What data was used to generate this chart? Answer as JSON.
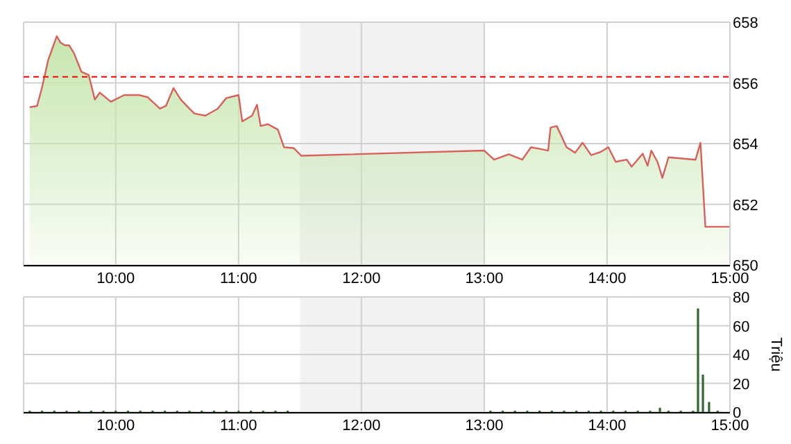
{
  "chart_data": [
    {
      "type": "area",
      "xlim": [
        9.25,
        15
      ],
      "xticks": [
        {
          "value": 10,
          "label": "10:00"
        },
        {
          "value": 11,
          "label": "11:00"
        },
        {
          "value": 12,
          "label": "12:00"
        },
        {
          "value": 13,
          "label": "13:00"
        },
        {
          "value": 14,
          "label": "14:00"
        },
        {
          "value": 15,
          "label": "15:00"
        }
      ],
      "ylim": [
        650,
        658
      ],
      "yticks": [
        650,
        652,
        654,
        656,
        658
      ],
      "grid": true,
      "ref_lines": [
        {
          "axis": "y",
          "value": 656.2,
          "color": "#ff0000",
          "line_style": "dashed"
        }
      ],
      "bands": [
        {
          "axis": "x",
          "from": 11.5,
          "to": 13,
          "color": "#f2f2f2"
        }
      ],
      "series": [
        {
          "color": "#c6e6ae",
          "x": [
            9.3,
            9.36,
            9.4,
            9.45,
            9.49,
            9.52,
            9.55,
            9.585,
            9.62,
            9.66,
            9.72,
            9.78,
            9.83,
            9.87,
            9.96,
            10.07,
            10.19,
            10.26,
            10.36,
            10.41,
            10.47,
            10.53,
            10.6,
            10.64,
            10.73,
            10.83,
            10.9,
            11.0,
            11.03,
            11.11,
            11.15,
            11.18,
            11.24,
            11.32,
            11.37,
            11.45,
            11.51,
            13.0,
            13.08,
            13.2,
            13.31,
            13.38,
            13.46,
            13.52,
            13.54,
            13.59,
            13.67,
            13.74,
            13.8,
            13.87,
            13.95,
            14.01,
            14.07,
            14.16,
            14.2,
            14.29,
            14.33,
            14.36,
            14.41,
            14.45,
            14.5,
            14.72,
            14.76,
            14.8,
            15.0
          ],
          "values": [
            655.2,
            655.24,
            655.85,
            656.75,
            657.2,
            657.54,
            657.33,
            657.24,
            657.24,
            656.98,
            656.37,
            656.26,
            655.45,
            655.68,
            655.38,
            655.6,
            655.6,
            655.53,
            655.15,
            655.25,
            655.83,
            655.45,
            655.15,
            654.99,
            654.92,
            655.15,
            655.5,
            655.6,
            654.73,
            654.92,
            655.28,
            654.58,
            654.64,
            654.46,
            653.88,
            653.85,
            653.6,
            653.77,
            653.47,
            653.65,
            653.47,
            653.88,
            653.82,
            653.77,
            654.53,
            654.58,
            653.88,
            653.7,
            654.03,
            653.62,
            653.73,
            653.88,
            653.4,
            653.47,
            653.24,
            653.67,
            653.27,
            653.77,
            653.4,
            652.87,
            653.55,
            653.47,
            654.03,
            651.26,
            651.26
          ]
        }
      ]
    },
    {
      "type": "bar",
      "ylabel": "Triệu",
      "xlim": [
        9.25,
        15
      ],
      "xticks": [
        {
          "value": 10,
          "label": "10:00"
        },
        {
          "value": 11,
          "label": "11:00"
        },
        {
          "value": 12,
          "label": "12:00"
        },
        {
          "value": 13,
          "label": "13:00"
        },
        {
          "value": 14,
          "label": "14:00"
        },
        {
          "value": 15,
          "label": "15:00"
        }
      ],
      "ylim": [
        0,
        80
      ],
      "yticks": [
        0,
        20,
        40,
        60,
        80
      ],
      "grid": true,
      "bands": [
        {
          "axis": "x",
          "from": 11.5,
          "to": 13,
          "color": "#f2f2f2"
        }
      ],
      "series": [
        {
          "color": "#2f6b2f",
          "x": [
            9.3,
            9.4,
            9.5,
            9.6,
            9.7,
            9.8,
            9.9,
            10.0,
            10.1,
            10.2,
            10.3,
            10.4,
            10.5,
            10.6,
            10.7,
            10.8,
            10.9,
            11.0,
            11.1,
            11.2,
            11.3,
            11.4,
            13.05,
            13.15,
            13.25,
            13.35,
            13.45,
            13.55,
            13.65,
            13.75,
            13.85,
            13.95,
            14.05,
            14.15,
            14.25,
            14.35,
            14.43,
            14.5,
            14.6,
            14.7,
            14.74,
            14.78,
            14.83,
            14.9
          ],
          "values": [
            1,
            1,
            1,
            1,
            1,
            1,
            1,
            1,
            1,
            1,
            1,
            1,
            1,
            1,
            1,
            1,
            1,
            1,
            1,
            1,
            1,
            1,
            1,
            1,
            1,
            1,
            1,
            1,
            1,
            1,
            1,
            1,
            1,
            1,
            1,
            1,
            3,
            1,
            1,
            1,
            72,
            26,
            7,
            1
          ]
        }
      ]
    }
  ]
}
